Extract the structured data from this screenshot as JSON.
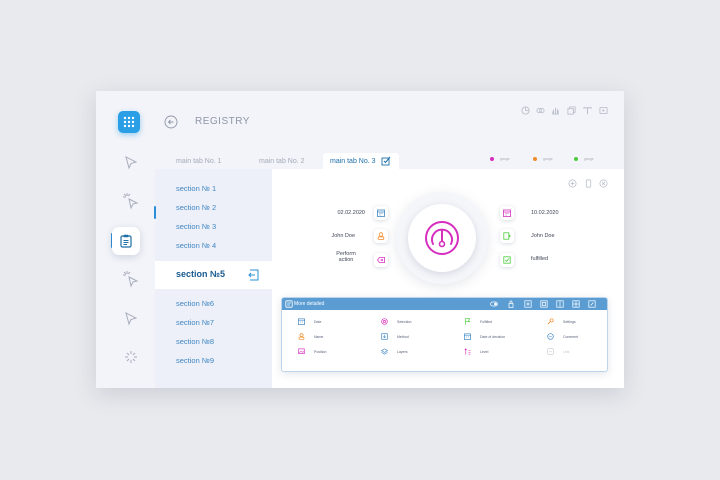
{
  "header": {
    "title": "REGISTRY"
  },
  "tabs": [
    {
      "label": "main tab No. 1"
    },
    {
      "label": "main tab No. 2"
    },
    {
      "label": "main tab No. 3"
    }
  ],
  "legend": [
    {
      "label": "gauge",
      "color": "#d62fc0"
    },
    {
      "label": "gauge",
      "color": "#ef8a2a"
    },
    {
      "label": "gauge",
      "color": "#4ccc3e"
    }
  ],
  "sections": [
    {
      "label": "section № 1"
    },
    {
      "label": "section № 2"
    },
    {
      "label": "section № 3"
    },
    {
      "label": "section № 4"
    },
    {
      "label": "section №5"
    },
    {
      "label": "section №6"
    },
    {
      "label": "section №7"
    },
    {
      "label": "section №8"
    },
    {
      "label": "section №9"
    }
  ],
  "details": {
    "left": [
      {
        "value": "02.02.2020",
        "icon": "calendar-icon"
      },
      {
        "value": "John Doe",
        "icon": "user-icon"
      },
      {
        "value": "Perform",
        "value2": "action",
        "icon": "erase-icon"
      }
    ],
    "right": [
      {
        "value": "10.02.2020",
        "icon": "calendar-icon"
      },
      {
        "value": "John Doe",
        "icon": "user-add-icon"
      },
      {
        "value": "fulfilled",
        "icon": "check-icon"
      }
    ]
  },
  "panel": {
    "title": "More detailed",
    "items": [
      {
        "label": "Date",
        "icon": "calendar-icon",
        "color": "#3f86c3"
      },
      {
        "label": "Selection",
        "icon": "target-icon",
        "color": "#d62fc0"
      },
      {
        "label": "Fulfilled",
        "icon": "flag-icon",
        "color": "#4ccc3e"
      },
      {
        "label": "Settings",
        "icon": "wrench-icon",
        "color": "#ef8a2a"
      },
      {
        "label": "Name",
        "icon": "user-icon",
        "color": "#ef8a2a"
      },
      {
        "label": "Method",
        "icon": "download-icon",
        "color": "#3f86c3"
      },
      {
        "label": "Date of decision",
        "icon": "calendar-icon",
        "color": "#3f86c3"
      },
      {
        "label": "Comment",
        "icon": "comment-icon",
        "color": "#3f86c3"
      },
      {
        "label": "Position",
        "icon": "image-icon",
        "color": "#d62fc0"
      },
      {
        "label": "Layers",
        "icon": "layers-icon",
        "color": "#3f86c3"
      },
      {
        "label": "Level",
        "icon": "level-icon",
        "color": "#d62fc0"
      },
      {
        "label": "Link",
        "icon": "link-icon",
        "color": "#c3c7d0"
      }
    ]
  },
  "colors": {
    "accent": "#2a9fe6",
    "primary_text": "#3f86c3",
    "active_section": "#175a90",
    "gauge": "#d62fc0"
  }
}
